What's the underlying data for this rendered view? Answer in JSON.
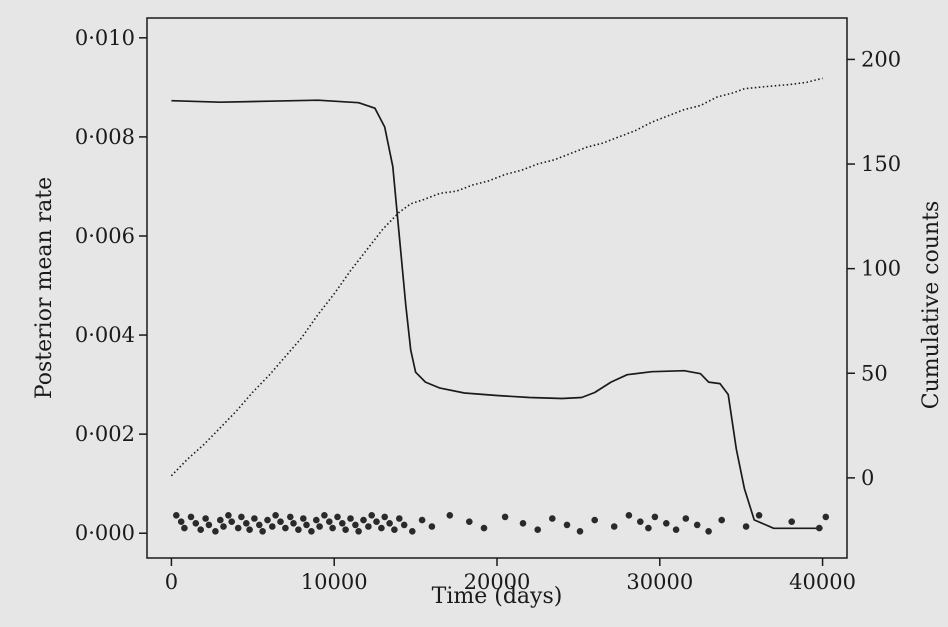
{
  "chart_data": {
    "type": "line",
    "title": "",
    "xlabel": "Time (days)",
    "ylabel": "Posterior mean rate",
    "y2label": "Cumulative counts",
    "xlim": [
      -1500,
      41500
    ],
    "ylim": [
      -0.0005,
      0.0104
    ],
    "y2lim": [
      -38.3,
      219.8
    ],
    "x_ticks": [
      0,
      10000,
      20000,
      30000,
      40000
    ],
    "x_tick_labels": [
      "0",
      "10000",
      "20000",
      "30000",
      "40000"
    ],
    "y_ticks": [
      0.0,
      0.002,
      0.004,
      0.006,
      0.008,
      0.01
    ],
    "y_tick_labels": [
      "0·000",
      "0·002",
      "0·004",
      "0·006",
      "0·008",
      "0·010"
    ],
    "y2_ticks": [
      0,
      50,
      100,
      150,
      200
    ],
    "y2_tick_labels": [
      "0",
      "50",
      "100",
      "150",
      "200"
    ],
    "grid": false,
    "legend": "none",
    "series": [
      {
        "axis": "left",
        "style": "solid",
        "points": [
          [
            0,
            0.00873
          ],
          [
            3000,
            0.0087
          ],
          [
            6000,
            0.00872
          ],
          [
            9000,
            0.00874
          ],
          [
            11500,
            0.00869
          ],
          [
            12500,
            0.00858
          ],
          [
            13100,
            0.0082
          ],
          [
            13600,
            0.0074
          ],
          [
            14000,
            0.006
          ],
          [
            14400,
            0.0046
          ],
          [
            14700,
            0.0037
          ],
          [
            15000,
            0.00325
          ],
          [
            15600,
            0.00305
          ],
          [
            16500,
            0.00293
          ],
          [
            18000,
            0.00283
          ],
          [
            20000,
            0.00278
          ],
          [
            22000,
            0.00274
          ],
          [
            24000,
            0.00272
          ],
          [
            25200,
            0.00274
          ],
          [
            26000,
            0.00284
          ],
          [
            27000,
            0.00305
          ],
          [
            28000,
            0.0032
          ],
          [
            29500,
            0.00326
          ],
          [
            31500,
            0.00328
          ],
          [
            32500,
            0.00322
          ],
          [
            33000,
            0.00305
          ],
          [
            33700,
            0.00302
          ],
          [
            34200,
            0.0028
          ],
          [
            34700,
            0.0017
          ],
          [
            35200,
            0.0009
          ],
          [
            35800,
            0.00027
          ],
          [
            37000,
            0.0001
          ],
          [
            38500,
            0.0001
          ],
          [
            40000,
            0.0001
          ]
        ]
      },
      {
        "axis": "right",
        "style": "dotted",
        "points": [
          [
            0,
            1
          ],
          [
            1000,
            9
          ],
          [
            2000,
            16
          ],
          [
            3000,
            24
          ],
          [
            4000,
            32
          ],
          [
            5000,
            41
          ],
          [
            6000,
            49
          ],
          [
            7000,
            58
          ],
          [
            8000,
            67
          ],
          [
            9000,
            78
          ],
          [
            10000,
            88
          ],
          [
            11000,
            99
          ],
          [
            12000,
            109
          ],
          [
            13000,
            119
          ],
          [
            14000,
            127
          ],
          [
            14700,
            131
          ],
          [
            15500,
            133
          ],
          [
            16500,
            136
          ],
          [
            17500,
            137
          ],
          [
            18500,
            140
          ],
          [
            19500,
            142
          ],
          [
            20500,
            145
          ],
          [
            21500,
            147
          ],
          [
            22500,
            150
          ],
          [
            23500,
            152
          ],
          [
            24500,
            155
          ],
          [
            25500,
            158
          ],
          [
            26500,
            160
          ],
          [
            27500,
            163
          ],
          [
            28500,
            166
          ],
          [
            29500,
            170
          ],
          [
            30500,
            173
          ],
          [
            31500,
            176
          ],
          [
            32500,
            178
          ],
          [
            33500,
            182
          ],
          [
            34500,
            184
          ],
          [
            35200,
            186
          ],
          [
            36500,
            187
          ],
          [
            38000,
            188
          ],
          [
            39000,
            189
          ],
          [
            40000,
            191
          ]
        ]
      }
    ],
    "events": [
      300,
      600,
      800,
      1200,
      1500,
      1800,
      2100,
      2300,
      2700,
      3000,
      3200,
      3500,
      3700,
      4100,
      4300,
      4600,
      4800,
      5100,
      5400,
      5600,
      5900,
      6200,
      6400,
      6700,
      7000,
      7300,
      7500,
      7800,
      8100,
      8300,
      8600,
      8900,
      9100,
      9400,
      9700,
      9900,
      10200,
      10500,
      10700,
      11000,
      11300,
      11500,
      11800,
      12100,
      12300,
      12600,
      12900,
      13100,
      13400,
      13700,
      14000,
      14300,
      14800,
      15400,
      16000,
      17100,
      18300,
      19200,
      20500,
      21600,
      22500,
      23400,
      24300,
      25100,
      26000,
      27200,
      28100,
      28800,
      29300,
      29700,
      30400,
      31000,
      31600,
      32300,
      33000,
      33800,
      35300,
      36100,
      38100,
      39800,
      40200
    ]
  }
}
